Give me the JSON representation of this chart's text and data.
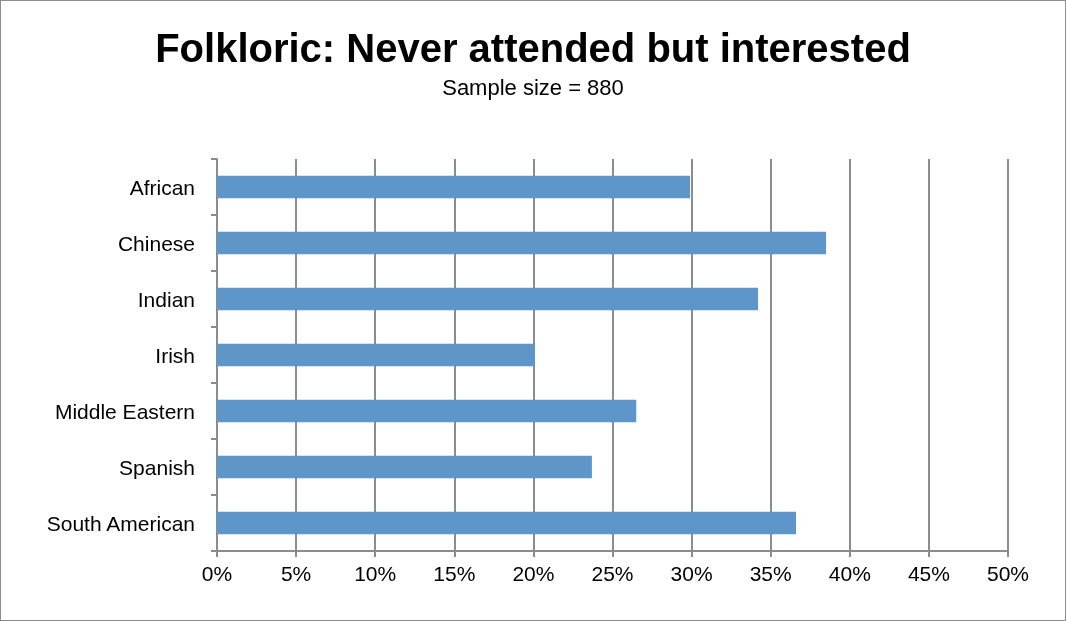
{
  "chart_data": {
    "type": "bar",
    "orientation": "horizontal",
    "title": "Folkloric: Never attended but interested",
    "subtitle": "Sample size = 880",
    "categories": [
      "African",
      "Chinese",
      "Indian",
      "Irish",
      "Middle Eastern",
      "Spanish",
      "South American"
    ],
    "values": [
      29.9,
      38.5,
      34.2,
      20.1,
      26.5,
      23.7,
      36.6
    ],
    "color": "#5f96c9",
    "xlim": [
      0,
      50
    ],
    "xticks": [
      {
        "value": 0,
        "label": "0%"
      },
      {
        "value": 5,
        "label": "5%"
      },
      {
        "value": 10,
        "label": "10%"
      },
      {
        "value": 15,
        "label": "15%"
      },
      {
        "value": 20,
        "label": "20%"
      },
      {
        "value": 25,
        "label": "25%"
      },
      {
        "value": 30,
        "label": "30%"
      },
      {
        "value": 35,
        "label": "35%"
      },
      {
        "value": 40,
        "label": "40%"
      },
      {
        "value": 45,
        "label": "45%"
      },
      {
        "value": 50,
        "label": "50%"
      }
    ],
    "grid": "x"
  }
}
